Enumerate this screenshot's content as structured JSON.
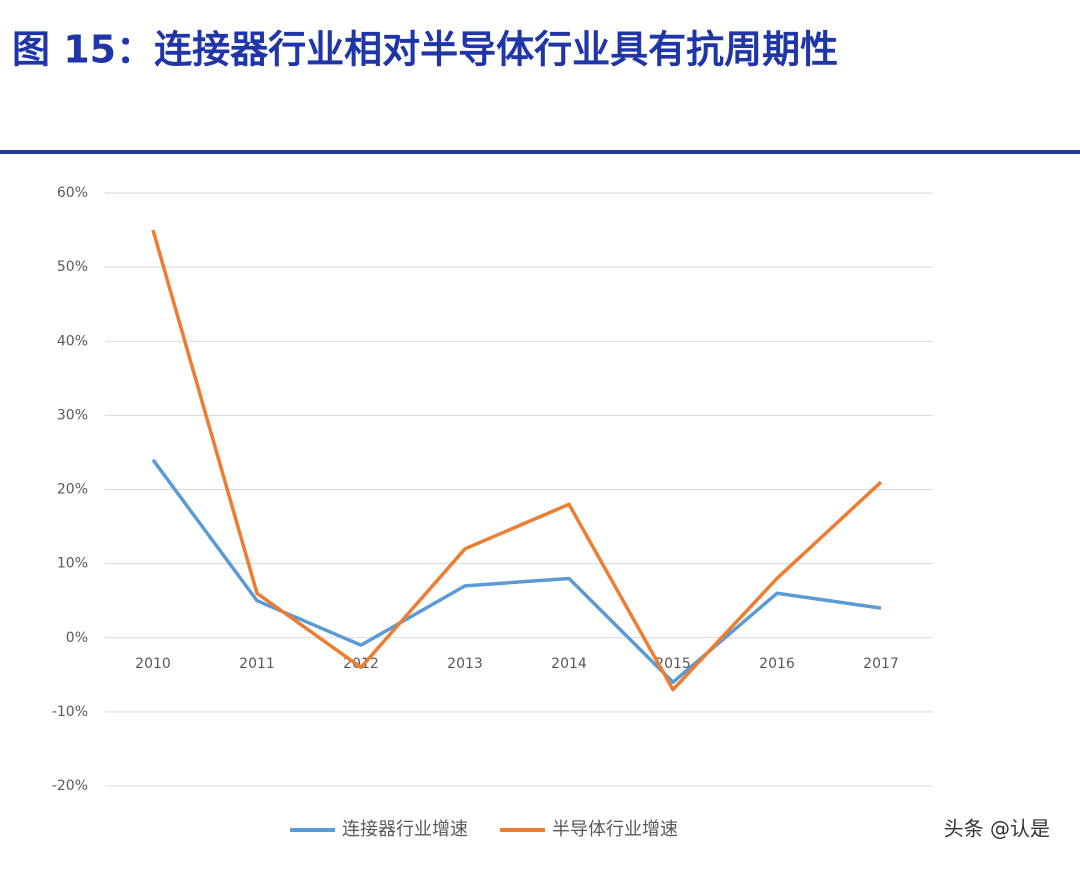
{
  "chart_data": {
    "type": "line",
    "title": "图 15：连接器行业相对半导体行业具有抗周期性",
    "categories": [
      "2010",
      "2011",
      "2012",
      "2013",
      "2014",
      "2015",
      "2016",
      "2017"
    ],
    "series": [
      {
        "name": "连接器行业增速",
        "color": "#5b9bd5",
        "values": [
          24,
          5,
          -1,
          7,
          8,
          -6,
          6,
          4
        ]
      },
      {
        "name": "半导体行业增速",
        "color": "#ed7d31",
        "values": [
          55,
          6,
          -4,
          12,
          18,
          -7,
          8,
          21
        ]
      }
    ],
    "ylim": [
      -20,
      60
    ],
    "yticks": [
      {
        "value": -20,
        "label": "-20%"
      },
      {
        "value": -10,
        "label": "-10%"
      },
      {
        "value": 0,
        "label": "0%"
      },
      {
        "value": 10,
        "label": "10%"
      },
      {
        "value": 20,
        "label": "20%"
      },
      {
        "value": 30,
        "label": "30%"
      },
      {
        "value": 40,
        "label": "40%"
      },
      {
        "value": 50,
        "label": "50%"
      },
      {
        "value": 60,
        "label": "60%"
      }
    ],
    "grid": true,
    "legend": "bottom",
    "watermark": "头条 @认是"
  }
}
